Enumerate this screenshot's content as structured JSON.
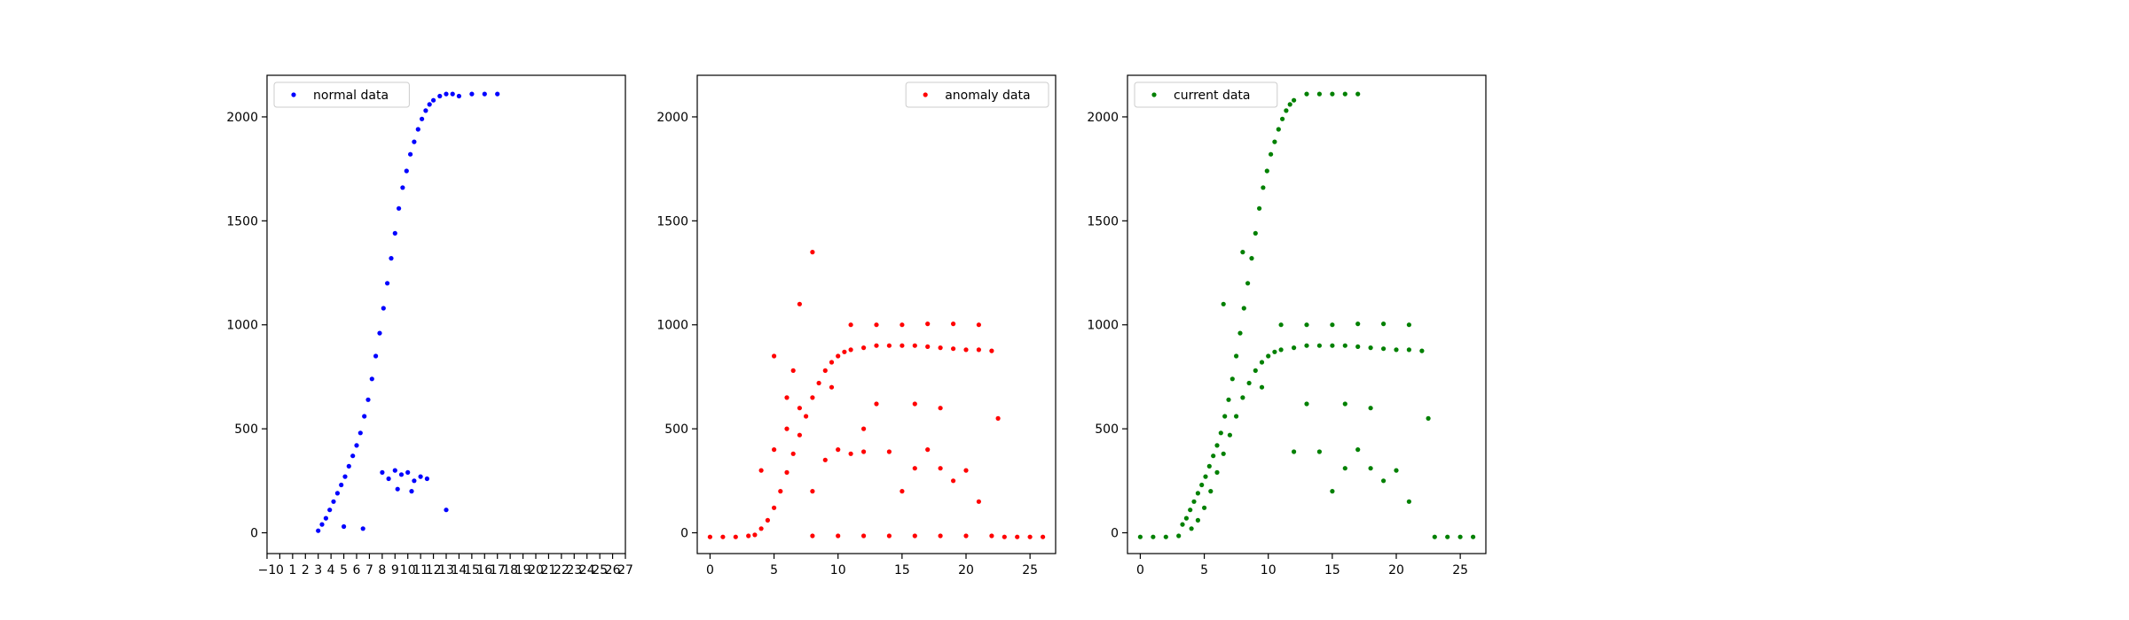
{
  "chart_data": [
    {
      "type": "scatter",
      "legend_location": "upper left",
      "grid": false,
      "xlim": [
        -1,
        27
      ],
      "ylim": [
        -100,
        2200
      ],
      "xticks": [
        -1,
        0,
        1,
        2,
        3,
        4,
        5,
        6,
        7,
        8,
        9,
        10,
        11,
        12,
        13,
        14,
        15,
        16,
        17,
        18,
        19,
        20,
        21,
        22,
        23,
        24,
        25,
        26,
        27
      ],
      "xtick_labels": [
        "−1",
        "0",
        "1",
        "2",
        "3",
        "4",
        "5",
        "6",
        "7",
        "8",
        "9",
        "10",
        "11",
        "12",
        "13",
        "14",
        "15",
        "16",
        "17",
        "18",
        "19",
        "20",
        "21",
        "22",
        "23",
        "24",
        "25",
        "26",
        "27"
      ],
      "yticks": [
        0,
        500,
        1000,
        1500,
        2000
      ],
      "ytick_labels": [
        "0",
        "500",
        "1000",
        "1500",
        "2000"
      ],
      "series": [
        {
          "name": "normal data",
          "color": "#0000ff",
          "x": [
            3.0,
            3.3,
            3.6,
            3.9,
            4.2,
            4.5,
            4.8,
            5.1,
            5.4,
            5.7,
            6.0,
            6.3,
            6.6,
            6.9,
            7.2,
            7.5,
            7.8,
            8.1,
            8.4,
            8.7,
            9.0,
            9.3,
            9.6,
            9.9,
            10.2,
            10.5,
            10.8,
            11.1,
            11.4,
            11.7,
            12.0,
            12.5,
            13.0,
            13.5,
            14.0,
            15.0,
            16.0,
            17.0,
            8.0,
            8.5,
            9.0,
            9.5,
            10.0,
            10.5,
            11.0,
            11.5,
            9.2,
            10.3,
            13.0,
            5.0,
            6.5
          ],
          "y": [
            10,
            40,
            70,
            110,
            150,
            190,
            230,
            270,
            320,
            370,
            420,
            480,
            560,
            640,
            740,
            850,
            960,
            1080,
            1200,
            1320,
            1440,
            1560,
            1660,
            1740,
            1820,
            1880,
            1940,
            1990,
            2030,
            2060,
            2080,
            2100,
            2110,
            2110,
            2100,
            2110,
            2110,
            2110,
            290,
            260,
            300,
            280,
            290,
            250,
            270,
            260,
            210,
            200,
            110,
            30,
            20
          ]
        }
      ]
    },
    {
      "type": "scatter",
      "legend_location": "upper right",
      "grid": false,
      "xlim": [
        -1,
        27
      ],
      "ylim": [
        -100,
        2200
      ],
      "xticks": [
        0,
        5,
        10,
        15,
        20,
        25
      ],
      "xtick_labels": [
        "0",
        "5",
        "10",
        "15",
        "20",
        "25"
      ],
      "yticks": [
        0,
        500,
        1000,
        1500,
        2000
      ],
      "ytick_labels": [
        "0",
        "500",
        "1000",
        "1500",
        "2000"
      ],
      "series": [
        {
          "name": "anomaly data",
          "color": "#ff0000",
          "x": [
            0.0,
            1.0,
            2.0,
            3.0,
            3.5,
            4.0,
            4.5,
            5.0,
            5.5,
            6.0,
            6.5,
            7.0,
            7.5,
            8.0,
            8.5,
            9.0,
            9.5,
            10.0,
            10.5,
            11.0,
            12.0,
            13.0,
            14.0,
            15.0,
            16.0,
            17.0,
            18.0,
            19.0,
            20.0,
            21.0,
            22.0,
            23.0,
            24.0,
            25.0,
            26.0,
            8.0,
            10.0,
            12.0,
            14.0,
            16.0,
            18.0,
            20.0,
            22.0,
            11.0,
            13.0,
            15.0,
            17.0,
            19.0,
            21.0,
            4.0,
            5.0,
            6.0,
            7.0,
            8.0,
            9.0,
            10.0,
            11.0,
            12.0,
            14.0,
            16.0,
            18.0,
            20.0,
            13.0,
            16.0,
            18.0,
            21.0,
            22.5,
            7.0,
            6.5,
            8.0,
            9.5,
            5.0,
            6.0,
            15.0,
            17.0,
            19.0,
            12.0
          ],
          "y": [
            -20,
            -20,
            -20,
            -15,
            -10,
            20,
            60,
            120,
            200,
            290,
            380,
            470,
            560,
            650,
            720,
            780,
            820,
            850,
            870,
            880,
            890,
            900,
            900,
            900,
            900,
            895,
            890,
            885,
            880,
            880,
            875,
            -20,
            -20,
            -20,
            -20,
            -15,
            -15,
            -15,
            -15,
            -15,
            -15,
            -15,
            -15,
            1000,
            1000,
            1000,
            1005,
            1005,
            1000,
            300,
            400,
            500,
            600,
            200,
            350,
            400,
            380,
            390,
            390,
            310,
            310,
            300,
            620,
            620,
            600,
            150,
            550,
            1100,
            780,
            1350,
            700,
            850,
            650,
            200,
            400,
            250,
            500
          ]
        }
      ]
    },
    {
      "type": "scatter",
      "legend_location": "upper left",
      "grid": false,
      "xlim": [
        -1,
        27
      ],
      "ylim": [
        -100,
        2200
      ],
      "xticks": [
        0,
        5,
        10,
        15,
        20,
        25
      ],
      "xtick_labels": [
        "0",
        "5",
        "10",
        "15",
        "20",
        "25"
      ],
      "yticks": [
        0,
        500,
        1000,
        1500,
        2000
      ],
      "ytick_labels": [
        "0",
        "500",
        "1000",
        "1500",
        "2000"
      ],
      "series": [
        {
          "name": "current data",
          "color": "#008000",
          "x": [
            0.0,
            1.0,
            2.0,
            3.0,
            3.3,
            3.6,
            3.9,
            4.2,
            4.5,
            4.8,
            5.1,
            5.4,
            5.7,
            6.0,
            6.3,
            6.6,
            6.9,
            7.2,
            7.5,
            7.8,
            8.1,
            8.4,
            8.7,
            9.0,
            9.3,
            9.6,
            9.9,
            10.2,
            10.5,
            10.8,
            11.1,
            11.4,
            11.7,
            12.0,
            13.0,
            14.0,
            15.0,
            16.0,
            17.0,
            4.0,
            4.5,
            5.0,
            5.5,
            6.0,
            6.5,
            7.0,
            7.5,
            8.0,
            8.5,
            9.0,
            9.5,
            10.0,
            10.5,
            11.0,
            12.0,
            13.0,
            14.0,
            15.0,
            16.0,
            17.0,
            18.0,
            19.0,
            20.0,
            21.0,
            22.0,
            23.0,
            24.0,
            25.0,
            26.0,
            11.0,
            13.0,
            15.0,
            17.0,
            19.0,
            21.0,
            12.0,
            14.0,
            16.0,
            18.0,
            20.0,
            13.0,
            16.0,
            18.0,
            21.0,
            22.5,
            6.5,
            8.0,
            9.5,
            15.0,
            17.0,
            19.0
          ],
          "y": [
            -20,
            -20,
            -20,
            -15,
            40,
            70,
            110,
            150,
            190,
            230,
            270,
            320,
            370,
            420,
            480,
            560,
            640,
            740,
            850,
            960,
            1080,
            1200,
            1320,
            1440,
            1560,
            1660,
            1740,
            1820,
            1880,
            1940,
            1990,
            2030,
            2060,
            2080,
            2110,
            2110,
            2110,
            2110,
            2110,
            20,
            60,
            120,
            200,
            290,
            380,
            470,
            560,
            650,
            720,
            780,
            820,
            850,
            870,
            880,
            890,
            900,
            900,
            900,
            900,
            895,
            890,
            885,
            880,
            880,
            875,
            -20,
            -20,
            -20,
            -20,
            1000,
            1000,
            1000,
            1005,
            1005,
            1000,
            390,
            390,
            310,
            310,
            300,
            620,
            620,
            600,
            150,
            550,
            1100,
            1350,
            700,
            200,
            400,
            250
          ]
        }
      ]
    }
  ]
}
